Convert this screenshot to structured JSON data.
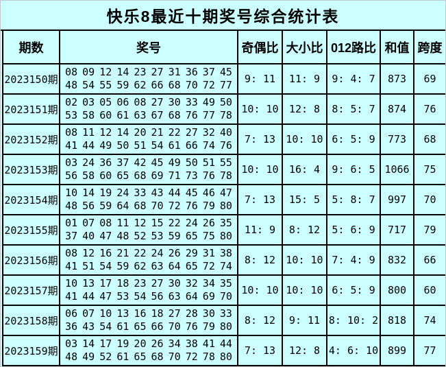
{
  "title": "快乐8最近十期奖号综合统计表",
  "colors": {
    "background": "#ccffff",
    "border": "#000000",
    "text": "#000000"
  },
  "table": {
    "headers": {
      "period": "期数",
      "numbers": "奖号",
      "odd_even": "奇偶比",
      "big_small": "大小比",
      "route012": "012路比",
      "sum": "和值",
      "span": "跨度"
    },
    "rows": [
      {
        "period": "2023150期",
        "balls_line1": "08 09 12 14 23 27 31 36 37 45",
        "balls_line2": "48 54 55 59 62 66 68 70 72 77",
        "odd_even": "9: 11",
        "big_small": "11: 9",
        "route012": "9: 4: 7",
        "sum": "873",
        "span": "69"
      },
      {
        "period": "2023151期",
        "balls_line1": "02 03 05 06 08 27 30 33 49 50",
        "balls_line2": "53 58 60 61 63 67 68 76 77 78",
        "odd_even": "10: 10",
        "big_small": "12: 8",
        "route012": "8: 5: 7",
        "sum": "874",
        "span": "76"
      },
      {
        "period": "2023152期",
        "balls_line1": "08 11 12 14 20 21 22 27 32 40",
        "balls_line2": "41 44 49 50 51 54 61 66 74 76",
        "odd_even": "7: 13",
        "big_small": "10: 10",
        "route012": "6: 5: 9",
        "sum": "773",
        "span": "68"
      },
      {
        "period": "2023153期",
        "balls_line1": "03 24 36 37 42 45 49 50 51 55",
        "balls_line2": "56 58 60 65 68 69 71 73 76 78",
        "odd_even": "10: 10",
        "big_small": "16: 4",
        "route012": "9: 6: 5",
        "sum": "1066",
        "span": "75"
      },
      {
        "period": "2023154期",
        "balls_line1": "10 14 19 24 33 43 44 45 46 47",
        "balls_line2": "48 56 59 64 68 70 72 76 79 80",
        "odd_even": "7: 13",
        "big_small": "15: 5",
        "route012": "5: 8: 7",
        "sum": "997",
        "span": "70"
      },
      {
        "period": "2023155期",
        "balls_line1": "01 07 08 11 12 15 22 24 26 35",
        "balls_line2": "37 40 47 48 52 53 59 65 75 80",
        "odd_even": "11: 9",
        "big_small": "8: 12",
        "route012": "5: 6: 9",
        "sum": "717",
        "span": "79"
      },
      {
        "period": "2023156期",
        "balls_line1": "08 12 16 21 22 24 26 29 31 38",
        "balls_line2": "41 51 54 59 62 63 64 65 72 74",
        "odd_even": "8: 12",
        "big_small": "10: 10",
        "route012": "7: 4: 9",
        "sum": "832",
        "span": "66"
      },
      {
        "period": "2023157期",
        "balls_line1": "10 13 17 18 23 27 30 32 34 35",
        "balls_line2": "41 44 47 53 54 56 63 64 69 70",
        "odd_even": "10: 10",
        "big_small": "10: 10",
        "route012": "6: 5: 9",
        "sum": "800",
        "span": "60"
      },
      {
        "period": "2023158期",
        "balls_line1": "06 07 10 13 16 18 27 28 30 33",
        "balls_line2": "36 43 54 61 65 66 70 76 79 80",
        "odd_even": "8: 12",
        "big_small": "9: 11",
        "route012": "8: 10: 2",
        "sum": "818",
        "span": "74"
      },
      {
        "period": "2023159期",
        "balls_line1": "03 14 17 19 20 26 34 38 41 44",
        "balls_line2": "48 49 52 61 65 68 70 72 78 80",
        "odd_even": "7: 13",
        "big_small": "12: 8",
        "route012": "4: 6: 10",
        "sum": "899",
        "span": "77"
      }
    ]
  },
  "chart_data": {
    "type": "table",
    "title": "快乐8最近十期奖号综合统计表",
    "columns": [
      "期数",
      "奖号",
      "奇偶比",
      "大小比",
      "012路比",
      "和值",
      "跨度"
    ],
    "rows": [
      {
        "period": "2023150",
        "numbers": [
          8,
          9,
          12,
          14,
          23,
          27,
          31,
          36,
          37,
          45,
          48,
          54,
          55,
          59,
          62,
          66,
          68,
          70,
          72,
          77
        ],
        "odd_even_ratio": "9:11",
        "big_small_ratio": "11:9",
        "route_012_ratio": "9:4:7",
        "sum": 873,
        "span": 69
      },
      {
        "period": "2023151",
        "numbers": [
          2,
          3,
          5,
          6,
          8,
          27,
          30,
          33,
          49,
          50,
          53,
          58,
          60,
          61,
          63,
          67,
          68,
          76,
          77,
          78
        ],
        "odd_even_ratio": "10:10",
        "big_small_ratio": "12:8",
        "route_012_ratio": "8:5:7",
        "sum": 874,
        "span": 76
      },
      {
        "period": "2023152",
        "numbers": [
          8,
          11,
          12,
          14,
          20,
          21,
          22,
          27,
          32,
          40,
          41,
          44,
          49,
          50,
          51,
          54,
          61,
          66,
          74,
          76
        ],
        "odd_even_ratio": "7:13",
        "big_small_ratio": "10:10",
        "route_012_ratio": "6:5:9",
        "sum": 773,
        "span": 68
      },
      {
        "period": "2023153",
        "numbers": [
          3,
          24,
          36,
          37,
          42,
          45,
          49,
          50,
          51,
          55,
          56,
          58,
          60,
          65,
          68,
          69,
          71,
          73,
          76,
          78
        ],
        "odd_even_ratio": "10:10",
        "big_small_ratio": "16:4",
        "route_012_ratio": "9:6:5",
        "sum": 1066,
        "span": 75
      },
      {
        "period": "2023154",
        "numbers": [
          10,
          14,
          19,
          24,
          33,
          43,
          44,
          45,
          46,
          47,
          48,
          56,
          59,
          64,
          68,
          70,
          72,
          76,
          79,
          80
        ],
        "odd_even_ratio": "7:13",
        "big_small_ratio": "15:5",
        "route_012_ratio": "5:8:7",
        "sum": 997,
        "span": 70
      },
      {
        "period": "2023155",
        "numbers": [
          1,
          7,
          8,
          11,
          12,
          15,
          22,
          24,
          26,
          35,
          37,
          40,
          47,
          48,
          52,
          53,
          59,
          65,
          75,
          80
        ],
        "odd_even_ratio": "11:9",
        "big_small_ratio": "8:12",
        "route_012_ratio": "5:6:9",
        "sum": 717,
        "span": 79
      },
      {
        "period": "2023156",
        "numbers": [
          8,
          12,
          16,
          21,
          22,
          24,
          26,
          29,
          31,
          38,
          41,
          51,
          54,
          59,
          62,
          63,
          64,
          65,
          72,
          74
        ],
        "odd_even_ratio": "8:12",
        "big_small_ratio": "10:10",
        "route_012_ratio": "7:4:9",
        "sum": 832,
        "span": 66
      },
      {
        "period": "2023157",
        "numbers": [
          10,
          13,
          17,
          18,
          23,
          27,
          30,
          32,
          34,
          35,
          41,
          44,
          47,
          53,
          54,
          56,
          63,
          64,
          69,
          70
        ],
        "odd_even_ratio": "10:10",
        "big_small_ratio": "10:10",
        "route_012_ratio": "6:5:9",
        "sum": 800,
        "span": 60
      },
      {
        "period": "2023158",
        "numbers": [
          6,
          7,
          10,
          13,
          16,
          18,
          27,
          28,
          30,
          33,
          36,
          43,
          54,
          61,
          65,
          66,
          70,
          76,
          79,
          80
        ],
        "odd_even_ratio": "8:12",
        "big_small_ratio": "9:11",
        "route_012_ratio": "8:10:2",
        "sum": 818,
        "span": 74
      },
      {
        "period": "2023159",
        "numbers": [
          3,
          14,
          17,
          19,
          20,
          26,
          34,
          38,
          41,
          44,
          48,
          49,
          52,
          61,
          65,
          68,
          70,
          72,
          78,
          80
        ],
        "odd_even_ratio": "7:13",
        "big_small_ratio": "12:8",
        "route_012_ratio": "4:6:10",
        "sum": 899,
        "span": 77
      }
    ]
  }
}
